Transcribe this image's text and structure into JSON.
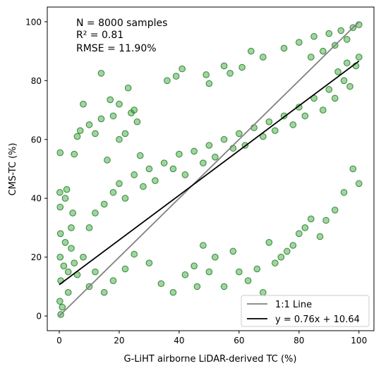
{
  "chart_data": {
    "type": "scatter",
    "title": "",
    "xlabel": "G-LiHT airborne LiDAR-derived TC (%)",
    "ylabel": "CMS-TC (%)",
    "xlim": [
      -4,
      105
    ],
    "ylim": [
      -5,
      105
    ],
    "xticks": [
      0,
      20,
      40,
      60,
      80,
      100
    ],
    "yticks": [
      0,
      20,
      40,
      60,
      80,
      100
    ],
    "grid": false,
    "legend_position": "bottom-right",
    "annotations": [
      "N = 8000 samples",
      "R² = 0.81",
      "RMSE = 11.90%"
    ],
    "point_style": {
      "fill": "#2ca02c",
      "edge": "#006400",
      "alpha": 0.45
    },
    "scatter_series": {
      "name": "",
      "n_total": 8000,
      "points_shown": [
        [
          0.5,
          0.5
        ],
        [
          0.2,
          5
        ],
        [
          0.5,
          12
        ],
        [
          0.3,
          20
        ],
        [
          0.4,
          28
        ],
        [
          0.3,
          37
        ],
        [
          0.2,
          42
        ],
        [
          0.3,
          55.5
        ],
        [
          1,
          3
        ],
        [
          1.5,
          17
        ],
        [
          2,
          25
        ],
        [
          2,
          40
        ],
        [
          2.5,
          43
        ],
        [
          3,
          8
        ],
        [
          4,
          30
        ],
        [
          4.5,
          35
        ],
        [
          5,
          55
        ],
        [
          6,
          61
        ],
        [
          7,
          63
        ],
        [
          8,
          72
        ],
        [
          10,
          65
        ],
        [
          12,
          62
        ],
        [
          14,
          67
        ],
        [
          16,
          53
        ],
        [
          18,
          68
        ],
        [
          20,
          72
        ],
        [
          20,
          60
        ],
        [
          22,
          62
        ],
        [
          24,
          69
        ],
        [
          25,
          70
        ],
        [
          26,
          66
        ],
        [
          27,
          54.5
        ],
        [
          14,
          82.5
        ],
        [
          17,
          73.5
        ],
        [
          23,
          77.5
        ],
        [
          36,
          80
        ],
        [
          39,
          81.5
        ],
        [
          41,
          84
        ],
        [
          49,
          82
        ],
        [
          50,
          79
        ],
        [
          55,
          85
        ],
        [
          61,
          84.5
        ],
        [
          64,
          90
        ],
        [
          57,
          82.5
        ],
        [
          68,
          88
        ],
        [
          75,
          91
        ],
        [
          80,
          93
        ],
        [
          85,
          95
        ],
        [
          90,
          96
        ],
        [
          94,
          97
        ],
        [
          98,
          98
        ],
        [
          100,
          99
        ],
        [
          96,
          94
        ],
        [
          92,
          92
        ],
        [
          88,
          90
        ],
        [
          84,
          88
        ],
        [
          45,
          17
        ],
        [
          48,
          24
        ],
        [
          50,
          15
        ],
        [
          52,
          20
        ],
        [
          55,
          10
        ],
        [
          58,
          22
        ],
        [
          60,
          15
        ],
        [
          63,
          12
        ],
        [
          66,
          16
        ],
        [
          68,
          8
        ],
        [
          70,
          25
        ],
        [
          72,
          18
        ],
        [
          74,
          20
        ],
        [
          76,
          22
        ],
        [
          78,
          24
        ],
        [
          80,
          28
        ],
        [
          82,
          30
        ],
        [
          84,
          33
        ],
        [
          87,
          27
        ],
        [
          89,
          32.5
        ],
        [
          92,
          36
        ],
        [
          95,
          42
        ],
        [
          100,
          45
        ],
        [
          98,
          50
        ],
        [
          34,
          11
        ],
        [
          38,
          8
        ],
        [
          42,
          14
        ],
        [
          46,
          10
        ],
        [
          30,
          18
        ],
        [
          25,
          21
        ],
        [
          22,
          16
        ],
        [
          18,
          12
        ],
        [
          15,
          8
        ],
        [
          12,
          15
        ],
        [
          10,
          10
        ],
        [
          8,
          20
        ],
        [
          6,
          14
        ],
        [
          5,
          18
        ],
        [
          4,
          23
        ],
        [
          3,
          15
        ],
        [
          10,
          30
        ],
        [
          12,
          35
        ],
        [
          15,
          38
        ],
        [
          18,
          42
        ],
        [
          20,
          45
        ],
        [
          22,
          40
        ],
        [
          25,
          48
        ],
        [
          28,
          44
        ],
        [
          30,
          50
        ],
        [
          32,
          46
        ],
        [
          35,
          52
        ],
        [
          38,
          50
        ],
        [
          40,
          55
        ],
        [
          42,
          48
        ],
        [
          45,
          56
        ],
        [
          48,
          52
        ],
        [
          50,
          58
        ],
        [
          52,
          54
        ],
        [
          55,
          60
        ],
        [
          58,
          57
        ],
        [
          60,
          62
        ],
        [
          62,
          58
        ],
        [
          65,
          64
        ],
        [
          68,
          61
        ],
        [
          70,
          66
        ],
        [
          72,
          63
        ],
        [
          75,
          68
        ],
        [
          78,
          65
        ],
        [
          80,
          71
        ],
        [
          82,
          68
        ],
        [
          85,
          74
        ],
        [
          88,
          70
        ],
        [
          90,
          77
        ],
        [
          92,
          74
        ],
        [
          95,
          80
        ],
        [
          97,
          78
        ],
        [
          99,
          85
        ],
        [
          100,
          88
        ],
        [
          96,
          86
        ],
        [
          93,
          83
        ]
      ]
    },
    "series": [
      {
        "name": "1:1 Line",
        "x": [
          0,
          100
        ],
        "values": [
          0,
          100
        ],
        "color": "#808080"
      },
      {
        "name": "y = 0.76x + 10.64",
        "x": [
          0,
          100
        ],
        "values": [
          10.64,
          86.64
        ],
        "color": "#000000"
      }
    ]
  }
}
